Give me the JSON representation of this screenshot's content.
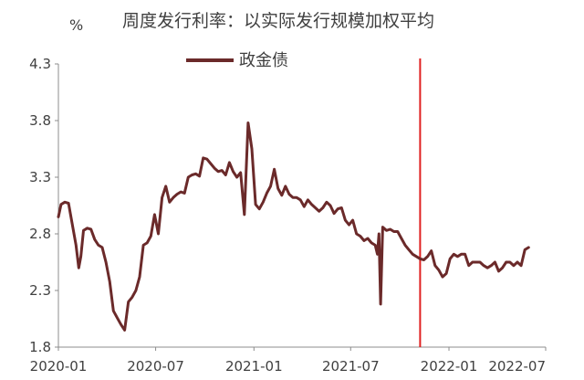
{
  "chart_data": {
    "type": "line",
    "title": "周度发行利率：以实际发行规模加权平均",
    "ylabel": "%",
    "ylim": [
      1.8,
      4.3
    ],
    "yticks": [
      "4.3",
      "3.8",
      "3.3",
      "2.8",
      "2.3",
      "1.8"
    ],
    "xlim": [
      "2020-01",
      "2022-07"
    ],
    "xticks": [
      "2020-01",
      "2020-07",
      "2021-01",
      "2021-07",
      "2022-01",
      "2022-07"
    ],
    "legend_position": "top-center",
    "grid": false,
    "series": [
      {
        "name": "政金债",
        "color": "#6b2a2a",
        "points": [
          [
            "2020-01-01",
            2.95
          ],
          [
            "2020-01-06",
            3.06
          ],
          [
            "2020-01-13",
            3.08
          ],
          [
            "2020-01-20",
            3.07
          ],
          [
            "2020-02-03",
            2.7
          ],
          [
            "2020-02-08",
            2.5
          ],
          [
            "2020-02-12",
            2.6
          ],
          [
            "2020-02-17",
            2.83
          ],
          [
            "2020-02-24",
            2.85
          ],
          [
            "2020-03-02",
            2.84
          ],
          [
            "2020-03-09",
            2.75
          ],
          [
            "2020-03-16",
            2.7
          ],
          [
            "2020-03-23",
            2.68
          ],
          [
            "2020-03-30",
            2.55
          ],
          [
            "2020-04-06",
            2.38
          ],
          [
            "2020-04-13",
            2.12
          ],
          [
            "2020-04-20",
            2.06
          ],
          [
            "2020-04-27",
            2.0
          ],
          [
            "2020-05-04",
            1.95
          ],
          [
            "2020-05-11",
            2.2
          ],
          [
            "2020-05-18",
            2.24
          ],
          [
            "2020-05-25",
            2.3
          ],
          [
            "2020-06-01",
            2.42
          ],
          [
            "2020-06-08",
            2.7
          ],
          [
            "2020-06-15",
            2.72
          ],
          [
            "2020-06-22",
            2.78
          ],
          [
            "2020-06-29",
            2.97
          ],
          [
            "2020-07-06",
            2.8
          ],
          [
            "2020-07-13",
            3.12
          ],
          [
            "2020-07-20",
            3.22
          ],
          [
            "2020-07-27",
            3.08
          ],
          [
            "2020-08-03",
            3.12
          ],
          [
            "2020-08-10",
            3.15
          ],
          [
            "2020-08-17",
            3.17
          ],
          [
            "2020-08-24",
            3.16
          ],
          [
            "2020-08-31",
            3.3
          ],
          [
            "2020-09-07",
            3.32
          ],
          [
            "2020-09-14",
            3.33
          ],
          [
            "2020-09-21",
            3.31
          ],
          [
            "2020-09-28",
            3.47
          ],
          [
            "2020-10-05",
            3.46
          ],
          [
            "2020-10-12",
            3.42
          ],
          [
            "2020-10-19",
            3.38
          ],
          [
            "2020-10-26",
            3.35
          ],
          [
            "2020-11-02",
            3.36
          ],
          [
            "2020-11-09",
            3.32
          ],
          [
            "2020-11-16",
            3.43
          ],
          [
            "2020-11-23",
            3.35
          ],
          [
            "2020-11-30",
            3.3
          ],
          [
            "2020-12-07",
            3.34
          ],
          [
            "2020-12-14",
            2.97
          ],
          [
            "2020-12-21",
            3.78
          ],
          [
            "2020-12-28",
            3.55
          ],
          [
            "2021-01-04",
            3.06
          ],
          [
            "2021-01-11",
            3.02
          ],
          [
            "2021-01-18",
            3.08
          ],
          [
            "2021-01-25",
            3.16
          ],
          [
            "2021-02-01",
            3.22
          ],
          [
            "2021-02-08",
            3.37
          ],
          [
            "2021-02-15",
            3.2
          ],
          [
            "2021-02-22",
            3.14
          ],
          [
            "2021-03-01",
            3.22
          ],
          [
            "2021-03-08",
            3.15
          ],
          [
            "2021-03-15",
            3.12
          ],
          [
            "2021-03-22",
            3.12
          ],
          [
            "2021-03-29",
            3.1
          ],
          [
            "2021-04-05",
            3.04
          ],
          [
            "2021-04-12",
            3.1
          ],
          [
            "2021-04-19",
            3.06
          ],
          [
            "2021-04-26",
            3.03
          ],
          [
            "2021-05-03",
            3.0
          ],
          [
            "2021-05-10",
            3.03
          ],
          [
            "2021-05-17",
            3.08
          ],
          [
            "2021-05-24",
            3.05
          ],
          [
            "2021-05-31",
            2.98
          ],
          [
            "2021-06-07",
            3.02
          ],
          [
            "2021-06-14",
            3.03
          ],
          [
            "2021-06-21",
            2.92
          ],
          [
            "2021-06-28",
            2.88
          ],
          [
            "2021-07-05",
            2.92
          ],
          [
            "2021-07-12",
            2.8
          ],
          [
            "2021-07-19",
            2.78
          ],
          [
            "2021-07-26",
            2.74
          ],
          [
            "2021-08-02",
            2.76
          ],
          [
            "2021-08-09",
            2.72
          ],
          [
            "2021-08-16",
            2.7
          ],
          [
            "2021-08-20",
            2.62
          ],
          [
            "2021-08-23",
            2.8
          ],
          [
            "2021-08-26",
            2.18
          ],
          [
            "2021-08-30",
            2.86
          ],
          [
            "2021-09-06",
            2.83
          ],
          [
            "2021-09-13",
            2.84
          ],
          [
            "2021-09-20",
            2.82
          ],
          [
            "2021-09-27",
            2.82
          ],
          [
            "2021-10-04",
            2.76
          ],
          [
            "2021-10-11",
            2.7
          ],
          [
            "2021-10-18",
            2.66
          ],
          [
            "2021-10-25",
            2.62
          ],
          [
            "2021-11-01",
            2.6
          ],
          [
            "2021-11-08",
            2.58
          ],
          [
            "2021-11-15",
            2.57
          ],
          [
            "2021-11-22",
            2.6
          ],
          [
            "2021-11-29",
            2.65
          ],
          [
            "2021-12-06",
            2.52
          ],
          [
            "2021-12-13",
            2.48
          ],
          [
            "2021-12-20",
            2.42
          ],
          [
            "2021-12-27",
            2.45
          ],
          [
            "2022-01-03",
            2.58
          ],
          [
            "2022-01-10",
            2.62
          ],
          [
            "2022-01-17",
            2.6
          ],
          [
            "2022-01-24",
            2.62
          ],
          [
            "2022-01-31",
            2.62
          ],
          [
            "2022-02-07",
            2.52
          ],
          [
            "2022-02-14",
            2.55
          ],
          [
            "2022-02-21",
            2.55
          ],
          [
            "2022-02-28",
            2.55
          ],
          [
            "2022-03-07",
            2.52
          ],
          [
            "2022-03-14",
            2.5
          ],
          [
            "2022-03-21",
            2.52
          ],
          [
            "2022-03-28",
            2.55
          ],
          [
            "2022-04-04",
            2.47
          ],
          [
            "2022-04-11",
            2.5
          ],
          [
            "2022-04-18",
            2.55
          ],
          [
            "2022-04-25",
            2.55
          ],
          [
            "2022-05-02",
            2.52
          ],
          [
            "2022-05-09",
            2.55
          ],
          [
            "2022-05-16",
            2.52
          ],
          [
            "2022-05-23",
            2.66
          ],
          [
            "2022-05-30",
            2.68
          ]
        ]
      }
    ],
    "annotations": [
      {
        "type": "vertical-line",
        "x": "2021-11-08",
        "color": "#e02020"
      }
    ]
  }
}
